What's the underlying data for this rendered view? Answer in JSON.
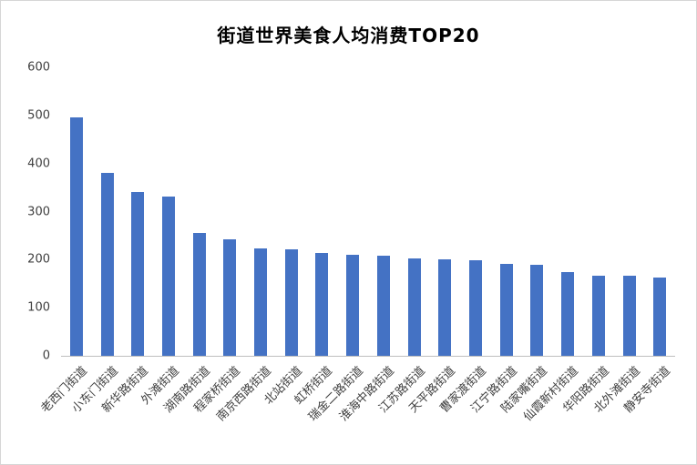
{
  "chart_data": {
    "type": "bar",
    "title": "街道世界美食人均消费TOP20",
    "categories": [
      "老西门街道",
      "小东门街道",
      "新华路街道",
      "外滩街道",
      "湖南路街道",
      "程家桥街道",
      "南京西路街道",
      "北站街道",
      "虹桥街道",
      "瑞金二路街道",
      "淮海中路街道",
      "江苏路街道",
      "天平路街道",
      "曹家渡街道",
      "江宁路街道",
      "陆家嘴街道",
      "仙霞新村街道",
      "华阳路街道",
      "北外滩街道",
      "静安寺街道"
    ],
    "values": [
      495,
      380,
      341,
      332,
      256,
      243,
      224,
      222,
      214,
      210,
      208,
      203,
      200,
      198,
      192,
      190,
      175,
      166,
      166,
      163
    ],
    "xlabel": "",
    "ylabel": "",
    "ylim": [
      0,
      600
    ],
    "yticks": [
      0,
      100,
      200,
      300,
      400,
      500,
      600
    ],
    "bar_color": "#4472C4",
    "axis_line_color": "#bfbfbf",
    "tick_label_color": "#404040",
    "grid": false,
    "legend_position": "none"
  }
}
